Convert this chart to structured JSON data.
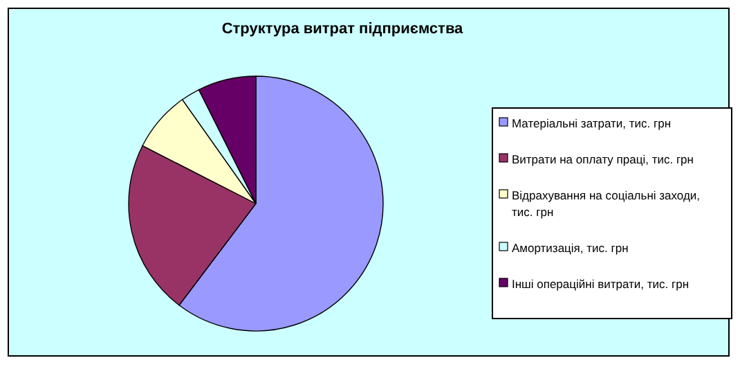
{
  "chart_data": {
    "type": "pie",
    "title": "Структура витрат підприємства",
    "categories": [
      "Матеріальні затрати, тис. грн",
      "Витрати на оплату праці, тис. грн",
      "Відрахування на соціальні заходи, тис. грн",
      "Амортизація, тис. грн",
      "Інші операційні витрати, тис. грн"
    ],
    "values": [
      60.3,
      22.2,
      7.7,
      2.4,
      7.4
    ],
    "colors": [
      "#9999ff",
      "#993366",
      "#ffffcc",
      "#ccffff",
      "#660066"
    ],
    "legend": "right"
  }
}
